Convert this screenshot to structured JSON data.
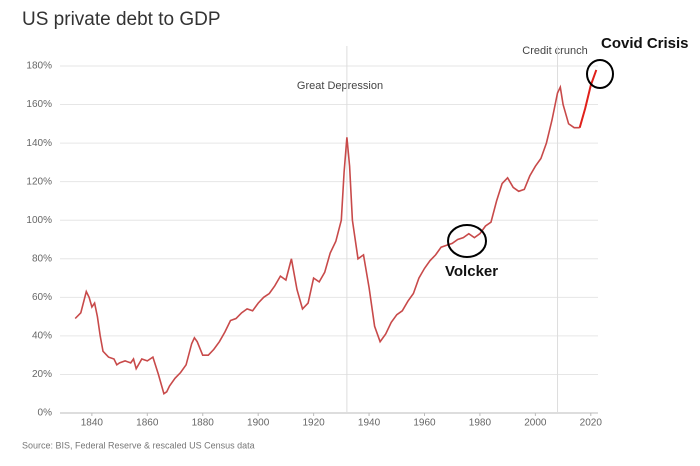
{
  "chart_data": {
    "type": "line",
    "title": "US private debt to GDP",
    "source": "Source: BIS, Federal Reserve & rescaled US Census data",
    "annotations": [
      "Great Depression",
      "Credit crunch",
      "Covid Crisis",
      "Volcker"
    ],
    "vlines": [
      1932,
      2008
    ],
    "x": [
      1834,
      1836,
      1838,
      1839,
      1840,
      1841,
      1842,
      1843,
      1844,
      1846,
      1848,
      1849,
      1850,
      1852,
      1854,
      1855,
      1856,
      1858,
      1860,
      1862,
      1864,
      1866,
      1867,
      1868,
      1870,
      1872,
      1874,
      1876,
      1877,
      1878,
      1880,
      1882,
      1884,
      1886,
      1888,
      1890,
      1892,
      1894,
      1896,
      1898,
      1900,
      1902,
      1904,
      1906,
      1908,
      1910,
      1912,
      1914,
      1916,
      1918,
      1920,
      1922,
      1924,
      1926,
      1928,
      1930,
      1931,
      1932,
      1933,
      1934,
      1936,
      1938,
      1940,
      1942,
      1944,
      1946,
      1948,
      1950,
      1952,
      1954,
      1956,
      1958,
      1960,
      1962,
      1964,
      1966,
      1968,
      1970,
      1972,
      1974,
      1976,
      1978,
      1980,
      1982,
      1984,
      1986,
      1988,
      1990,
      1992,
      1994,
      1996,
      1998,
      2000,
      2002,
      2004,
      2006,
      2008,
      2009,
      2010,
      2012,
      2014,
      2016,
      2018,
      2020,
      2022
    ],
    "series": [
      {
        "color": "#c84a4a",
        "values": [
          49,
          52,
          63,
          60,
          55,
          57,
          50,
          40,
          32,
          29,
          28,
          25,
          26,
          27,
          26,
          28,
          23,
          28,
          27,
          29,
          20,
          10,
          11,
          14,
          18,
          21,
          25,
          36,
          39,
          37,
          30,
          30,
          33,
          37,
          42,
          48,
          49,
          52,
          54,
          53,
          57,
          60,
          62,
          66,
          71,
          69,
          80,
          64,
          54,
          57,
          70,
          68,
          73,
          83,
          89,
          100,
          125,
          143,
          128,
          100,
          80,
          82,
          65,
          45,
          37,
          41,
          47,
          51,
          53,
          58,
          62,
          70,
          75,
          79,
          82,
          86,
          87,
          88,
          90,
          91,
          93,
          91,
          93,
          97,
          99,
          110,
          119,
          122,
          117,
          115,
          116,
          123,
          128,
          132,
          140,
          152,
          166,
          169,
          160,
          150,
          148,
          148,
          null,
          null,
          null
        ]
      },
      {
        "color": "#e0201a",
        "values": [
          null,
          null,
          null,
          null,
          null,
          null,
          null,
          null,
          null,
          null,
          null,
          null,
          null,
          null,
          null,
          null,
          null,
          null,
          null,
          null,
          null,
          null,
          null,
          null,
          null,
          null,
          null,
          null,
          null,
          null,
          null,
          null,
          null,
          null,
          null,
          null,
          null,
          null,
          null,
          null,
          null,
          null,
          null,
          null,
          null,
          null,
          null,
          null,
          null,
          null,
          null,
          null,
          null,
          null,
          null,
          null,
          null,
          null,
          null,
          null,
          null,
          null,
          null,
          null,
          null,
          null,
          null,
          null,
          null,
          null,
          null,
          null,
          null,
          null,
          null,
          null,
          null,
          null,
          null,
          null,
          null,
          null,
          null,
          null,
          null,
          null,
          null,
          null,
          null,
          null,
          null,
          null,
          null,
          null,
          null,
          null,
          null,
          null,
          null,
          null,
          null,
          148,
          158,
          170,
          178
        ]
      }
    ],
    "xlim": [
      1828.5,
      2022.6
    ],
    "ylim": [
      0,
      180
    ],
    "xticks": [
      1840,
      1860,
      1880,
      1900,
      1920,
      1940,
      1960,
      1980,
      2000,
      2020
    ],
    "yticks": [
      {
        "value": 0,
        "label": "0%"
      },
      {
        "value": 20,
        "label": "20%"
      },
      {
        "value": 40,
        "label": "40%"
      },
      {
        "value": 60,
        "label": "60%"
      },
      {
        "value": 80,
        "label": "80%"
      },
      {
        "value": 100,
        "label": "100%"
      },
      {
        "value": 120,
        "label": "120%"
      },
      {
        "value": 140,
        "label": "140%"
      },
      {
        "value": 160,
        "label": "160%"
      },
      {
        "value": 180,
        "label": "180%"
      }
    ],
    "grid": true
  }
}
